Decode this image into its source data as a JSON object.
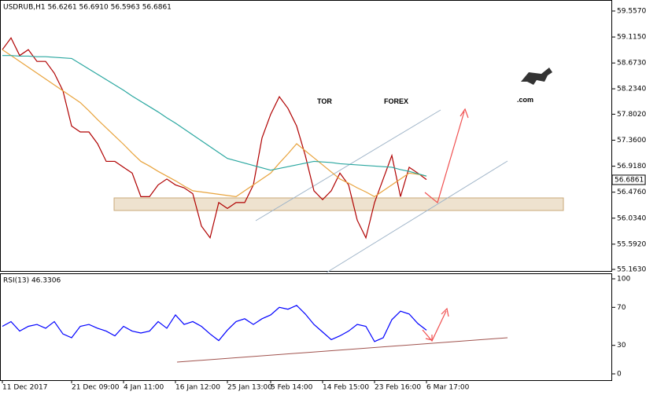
{
  "chart_data": [
    {
      "type": "line",
      "title": "USDRUB,H1  56.6261 56.6910 56.5963 56.6861",
      "categories": [
        "11 Dec 2017",
        null,
        null,
        null,
        null,
        null,
        null,
        null,
        "21 Dec 09:00",
        null,
        null,
        null,
        null,
        null,
        "4 Jan 11:00",
        null,
        null,
        null,
        null,
        null,
        "16 Jan 12:00",
        null,
        null,
        null,
        null,
        null,
        "25 Jan 13:00",
        null,
        null,
        null,
        null,
        "5 Feb 14:00",
        null,
        null,
        null,
        null,
        null,
        "14 Feb 15:00",
        null,
        null,
        null,
        null,
        null,
        "23 Feb 16:00",
        null,
        null,
        null,
        null,
        null,
        "6 Mar 17:00"
      ],
      "series": [
        {
          "color": "#b00000",
          "values": [
            58.9,
            59.1,
            58.8,
            58.9,
            58.7,
            58.7,
            58.5,
            58.2,
            57.6,
            57.5,
            57.5,
            57.3,
            57.0,
            57.0,
            56.9,
            56.8,
            56.4,
            56.4,
            56.6,
            56.7,
            56.6,
            56.55,
            56.45,
            55.9,
            55.7,
            56.3,
            56.2,
            56.3,
            56.3,
            56.6,
            57.4,
            57.8,
            58.1,
            57.9,
            57.6,
            57.1,
            56.5,
            56.35,
            56.5,
            56.8,
            56.6,
            56.0,
            55.7,
            56.3,
            56.7,
            57.1,
            56.4,
            56.9,
            56.8,
            56.69
          ]
        },
        {
          "color": "#e8a33c",
          "values": [
            58.9,
            58.8,
            58.7,
            58.6,
            58.5,
            58.4,
            58.3,
            58.2,
            58.1,
            58.0,
            57.86,
            57.71,
            57.57,
            57.43,
            57.29,
            57.14,
            57.0,
            56.92,
            56.83,
            56.75,
            56.67,
            56.58,
            56.5,
            56.48,
            56.46,
            56.44,
            56.42,
            56.4,
            56.5,
            56.6,
            56.7,
            56.8,
            56.97,
            57.13,
            57.3,
            57.18,
            57.06,
            56.94,
            56.82,
            56.7,
            56.63,
            56.55,
            56.48,
            56.4,
            56.5,
            56.6,
            56.7,
            56.8,
            56.78,
            56.75
          ]
        },
        {
          "color": "#2aa7a0",
          "values": [
            58.8,
            58.8,
            58.79,
            58.79,
            58.78,
            58.78,
            58.77,
            58.76,
            58.75,
            58.66,
            58.57,
            58.48,
            58.39,
            58.3,
            58.21,
            58.11,
            58.02,
            57.93,
            57.84,
            57.74,
            57.65,
            57.55,
            57.45,
            57.35,
            57.25,
            57.15,
            57.05,
            57.01,
            56.97,
            56.93,
            56.89,
            56.85,
            56.88,
            56.91,
            56.94,
            56.97,
            57.0,
            56.99,
            56.98,
            56.96,
            56.95,
            56.94,
            56.93,
            56.92,
            56.91,
            56.9,
            56.86,
            56.83,
            56.79,
            56.75
          ]
        }
      ],
      "ylim": [
        55.163,
        59.557
      ],
      "yticks": [
        {
          "value": 59.557,
          "label": "59.5570"
        },
        {
          "value": 59.115,
          "label": "59.1150"
        },
        {
          "value": 58.673,
          "label": "58.6730"
        },
        {
          "value": 58.234,
          "label": "58.2340"
        },
        {
          "value": 57.802,
          "label": "57.8020"
        },
        {
          "value": 57.36,
          "label": "57.3600"
        },
        {
          "value": 56.918,
          "label": "56.9180"
        },
        {
          "value": 56.476,
          "label": "56.4760"
        },
        {
          "value": 56.034,
          "label": "56.0340"
        },
        {
          "value": 55.592,
          "label": "55.5920"
        },
        {
          "value": 55.163,
          "label": "55.1630"
        }
      ],
      "last_price": 56.6861
    },
    {
      "type": "line",
      "title": "RSI(13) 46.3306",
      "series": [
        {
          "color": "#0000ff",
          "values": [
            50,
            55,
            45,
            50,
            52,
            48,
            55,
            42,
            38,
            50,
            52,
            48,
            45,
            40,
            50,
            45,
            43,
            45,
            55,
            48,
            62,
            52,
            55,
            50,
            42,
            35,
            46,
            55,
            58,
            52,
            58,
            62,
            70,
            68,
            72,
            63,
            52,
            44,
            36,
            40,
            45,
            52,
            50,
            34,
            38,
            57,
            66,
            63,
            53,
            46
          ]
        }
      ],
      "ylim": [
        0,
        100
      ],
      "yticks": [
        0,
        30,
        70,
        100
      ]
    }
  ],
  "logo": {
    "prefix": "TOR",
    "main": "FOREX",
    "suffix": ".com"
  }
}
